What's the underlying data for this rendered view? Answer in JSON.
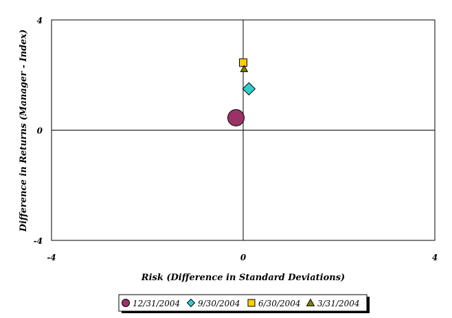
{
  "chart_data": {
    "type": "scatter",
    "title": "",
    "xlabel": "Risk (Difference in Standard Deviations)",
    "ylabel": "Difference in Returns (Manager - Index)",
    "xlim": [
      -4,
      4
    ],
    "ylim": [
      -4,
      4
    ],
    "x_ticks": [
      {
        "value": -4,
        "label": "-4"
      },
      {
        "value": 0,
        "label": "0"
      },
      {
        "value": 4,
        "label": "4"
      }
    ],
    "y_ticks": [
      {
        "value": -4,
        "label": "-4"
      },
      {
        "value": 0,
        "label": "0"
      },
      {
        "value": 4,
        "label": "4"
      }
    ],
    "grid": false,
    "legend_position": "bottom",
    "series": [
      {
        "name": "12/31/2004",
        "marker": "circle",
        "color": "#993366",
        "points": [
          {
            "x": -0.15,
            "y": 0.45
          }
        ]
      },
      {
        "name": "9/30/2004",
        "marker": "diamond",
        "color": "#33CCCC",
        "points": [
          {
            "x": 0.12,
            "y": 1.5
          }
        ]
      },
      {
        "name": "6/30/2004",
        "marker": "square",
        "color": "#FFCC00",
        "points": [
          {
            "x": 0.0,
            "y": 2.45
          }
        ]
      },
      {
        "name": "3/31/2004",
        "marker": "triangle",
        "color": "#808000",
        "points": [
          {
            "x": 0.02,
            "y": 2.22
          }
        ]
      }
    ]
  }
}
